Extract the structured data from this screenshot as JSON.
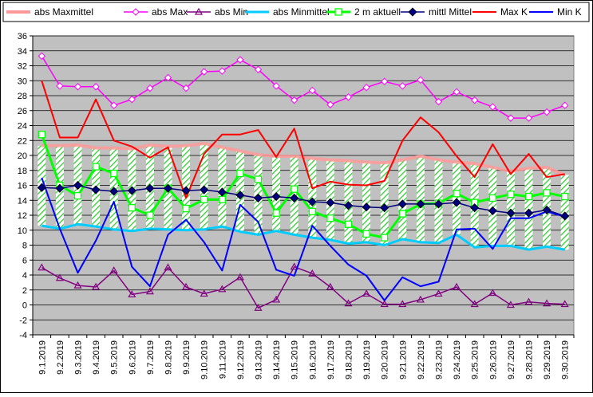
{
  "chart_data": {
    "type": "line",
    "title": "",
    "xlabel": "",
    "ylabel": "",
    "ylim": [
      -4,
      36
    ],
    "yticks": [
      -4,
      -2,
      0,
      2,
      4,
      6,
      8,
      10,
      12,
      14,
      16,
      18,
      20,
      22,
      24,
      26,
      28,
      30,
      32,
      34,
      36
    ],
    "grid": true,
    "legend_position": "top",
    "plot_background": "#c0c0c0",
    "categories": [
      "9.1.2019",
      "9.2.2019",
      "9.3.2019",
      "9.4.2019",
      "9.5.2019",
      "9.6.2019",
      "9.7.2019",
      "9.8.2019",
      "9.9.2019",
      "9.10.2019",
      "9.11.2019",
      "9.12.2019",
      "9.13.2019",
      "9.14.2019",
      "9.15.2019",
      "9.16.2019",
      "9.17.2019",
      "9.18.2019",
      "9.19.2019",
      "9.20.2019",
      "9.21.2019",
      "9.22.2019",
      "9.23.2019",
      "9.24.2019",
      "9.25.2019",
      "9.26.2019",
      "9.27.2019",
      "9.28.2019",
      "9.29.2019",
      "9.30.2019"
    ],
    "series": [
      {
        "name": "abs Maxmittel",
        "color": "#ff9999",
        "style": "thick-line",
        "values": [
          21.3,
          21.3,
          21.4,
          21.0,
          21.0,
          20.9,
          21.4,
          21.2,
          21.3,
          21.6,
          21.1,
          20.6,
          20.1,
          19.9,
          19.9,
          19.6,
          19.4,
          19.3,
          19.1,
          19.0,
          19.4,
          19.9,
          19.4,
          19.1,
          18.9,
          18.4,
          17.9,
          18.3,
          18.4,
          17.4
        ]
      },
      {
        "name": "abs Max",
        "color": "#ff00ff",
        "style": "line-open-diamond",
        "values": [
          33.3,
          29.3,
          29.2,
          29.2,
          26.7,
          27.5,
          29.0,
          30.4,
          29.0,
          31.2,
          31.3,
          32.8,
          31.5,
          29.3,
          27.4,
          28.7,
          26.8,
          27.8,
          29.1,
          29.9,
          29.3,
          30.1,
          27.2,
          28.5,
          27.4,
          26.5,
          25.0,
          25.0,
          25.8,
          26.7
        ]
      },
      {
        "name": "abs Min",
        "color": "#800080",
        "style": "line-open-triangle",
        "values": [
          5.0,
          3.6,
          2.6,
          2.4,
          4.6,
          1.4,
          1.8,
          5.0,
          2.4,
          1.5,
          2.1,
          3.7,
          -0.4,
          0.7,
          5.1,
          4.2,
          2.4,
          0.2,
          1.5,
          0.1,
          0.1,
          0.7,
          1.5,
          2.4,
          0.1,
          1.6,
          0.0,
          0.4,
          0.2,
          0.1
        ]
      },
      {
        "name": "abs Minmittel",
        "color": "#00ccff",
        "style": "thick-line",
        "values": [
          10.6,
          10.2,
          10.8,
          10.5,
          10.1,
          9.9,
          10.2,
          10.1,
          10.0,
          10.1,
          10.5,
          9.8,
          9.4,
          9.9,
          9.4,
          9.0,
          8.7,
          8.2,
          8.4,
          8.0,
          8.8,
          8.4,
          8.3,
          9.4,
          7.7,
          7.9,
          7.9,
          7.4,
          7.8,
          7.4
        ]
      },
      {
        "name": "2 m aktuell",
        "color": "#00ff00",
        "style": "thick-line-open-square",
        "values": [
          22.8,
          16.0,
          14.6,
          18.5,
          17.6,
          13.0,
          12.0,
          15.6,
          12.9,
          14.1,
          14.1,
          17.6,
          16.8,
          12.3,
          15.5,
          12.5,
          11.6,
          10.8,
          9.5,
          9.0,
          12.2,
          13.5,
          13.6,
          14.9,
          13.7,
          14.3,
          14.8,
          14.5,
          15.0,
          14.5
        ]
      },
      {
        "name": "mittl Mittel",
        "color": "#000080",
        "style": "line-filled-diamond",
        "values": [
          15.7,
          15.6,
          16.0,
          15.4,
          15.2,
          15.3,
          15.6,
          15.6,
          15.3,
          15.4,
          15.1,
          14.7,
          14.3,
          14.5,
          14.3,
          13.8,
          13.7,
          13.3,
          13.1,
          13.0,
          13.5,
          13.5,
          13.5,
          13.7,
          13.0,
          12.6,
          12.3,
          12.3,
          12.7,
          11.9
        ]
      },
      {
        "name": "Max K",
        "color": "#ff0000",
        "style": "line",
        "values": [
          30.0,
          22.4,
          22.4,
          27.5,
          22.0,
          21.2,
          19.7,
          21.1,
          14.3,
          20.2,
          22.8,
          22.8,
          23.4,
          19.8,
          23.6,
          15.6,
          16.5,
          16.1,
          16.0,
          16.6,
          22.0,
          25.1,
          23.1,
          19.9,
          17.1,
          21.5,
          17.5,
          20.2,
          17.1,
          17.5
        ]
      },
      {
        "name": "Min K",
        "color": "#0000ff",
        "style": "line",
        "values": [
          17.0,
          10.2,
          4.3,
          8.6,
          13.8,
          5.1,
          2.5,
          9.4,
          11.4,
          8.4,
          4.6,
          13.4,
          11.1,
          4.7,
          3.9,
          10.6,
          7.9,
          5.4,
          3.9,
          0.6,
          3.7,
          2.5,
          3.1,
          10.1,
          10.2,
          7.5,
          11.6,
          11.6,
          12.5,
          11.8
        ]
      }
    ]
  }
}
